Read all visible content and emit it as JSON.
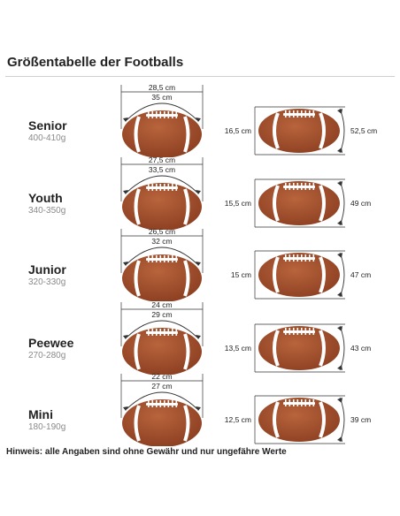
{
  "title": "Größentabelle der Footballs",
  "note": "Hinweis: alle Angaben sind ohne Gewähr und nur ungefähre Werte",
  "colors": {
    "leather": "#8a3d20",
    "leather_light": "#b8643c",
    "lace": "#ffffff",
    "lines": "#333333"
  },
  "sizes": [
    {
      "name": "Senior",
      "weight": "400-410g",
      "circ_outer": "28,5 cm",
      "circ_inner": "35 cm",
      "width": "16,5 cm",
      "length": "52,5 cm"
    },
    {
      "name": "Youth",
      "weight": "340-350g",
      "circ_outer": "27,5 cm",
      "circ_inner": "33,5 cm",
      "width": "15,5 cm",
      "length": "49 cm"
    },
    {
      "name": "Junior",
      "weight": "320-330g",
      "circ_outer": "26,5 cm",
      "circ_inner": "32 cm",
      "width": "15 cm",
      "length": "47 cm"
    },
    {
      "name": "Peewee",
      "weight": "270-280g",
      "circ_outer": "24 cm",
      "circ_inner": "29 cm",
      "width": "13,5 cm",
      "length": "43 cm"
    },
    {
      "name": "Mini",
      "weight": "180-190g",
      "circ_outer": "22 cm",
      "circ_inner": "27 cm",
      "width": "12,5 cm",
      "length": "39 cm"
    }
  ]
}
